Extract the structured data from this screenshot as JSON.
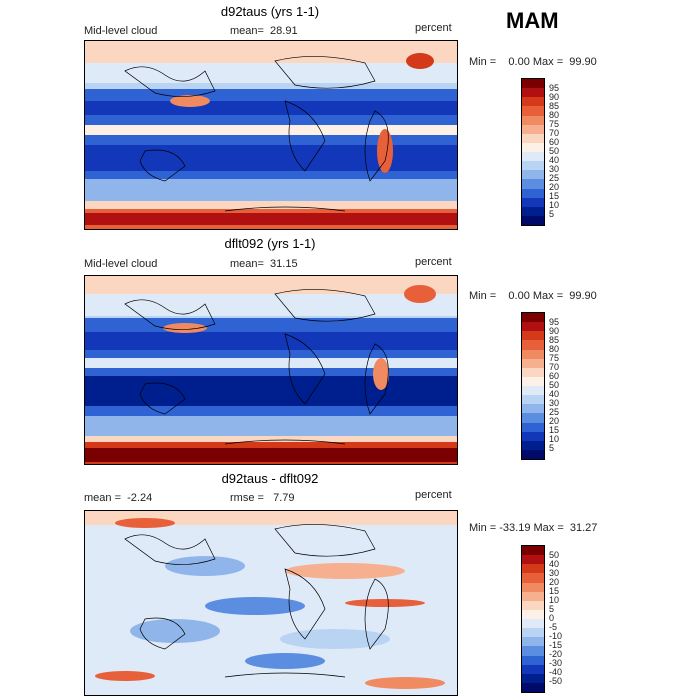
{
  "season": "MAM",
  "panels": [
    {
      "title": "d92taus (yrs 1-1)",
      "left_label": "Mid-level cloud",
      "mean_label": "mean=  28.91",
      "units": "percent",
      "minmax": "Min =    0.00 Max =  99.90",
      "colorbar_labels": [
        "95",
        "90",
        "85",
        "80",
        "75",
        "70",
        "60",
        "50",
        "40",
        "30",
        "25",
        "20",
        "15",
        "10",
        "5"
      ]
    },
    {
      "title": "dflt092 (yrs 1-1)",
      "left_label": "Mid-level cloud",
      "mean_label": "mean=  31.15",
      "units": "percent",
      "minmax": "Min =    0.00 Max =  99.90",
      "colorbar_labels": [
        "95",
        "90",
        "85",
        "80",
        "75",
        "70",
        "60",
        "50",
        "40",
        "30",
        "25",
        "20",
        "15",
        "10",
        "5"
      ]
    },
    {
      "title": "d92taus - dflt092",
      "left_label": "mean =  -2.24",
      "mean_label": "rmse =   7.79",
      "units": "percent",
      "minmax": "Min = -33.19 Max =  31.27",
      "colorbar_labels": [
        "50",
        "40",
        "30",
        "20",
        "15",
        "10",
        "5",
        "0",
        "-5",
        "-10",
        "-15",
        "-20",
        "-30",
        "-40",
        "-50"
      ]
    }
  ],
  "colors": {
    "abs_scale": [
      "#7a0000",
      "#b01010",
      "#d43a1a",
      "#e8603a",
      "#f08a60",
      "#f6b090",
      "#fbd6c0",
      "#fdf0e6",
      "#dfeaf8",
      "#b9d3f2",
      "#8fb5eb",
      "#5b8ee0",
      "#2f63d4",
      "#1237b8",
      "#001f8f",
      "#000a6a"
    ],
    "diff_scale": [
      "#7a0000",
      "#b01010",
      "#d43a1a",
      "#e8603a",
      "#f08a60",
      "#f6b090",
      "#fbd6c0",
      "#fdf0e6",
      "#dfeaf8",
      "#b9d3f2",
      "#8fb5eb",
      "#5b8ee0",
      "#2f63d4",
      "#1237b8",
      "#001f8f",
      "#000a6a"
    ]
  }
}
